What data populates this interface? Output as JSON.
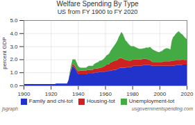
{
  "chart_data": {
    "type": "area",
    "stacked": true,
    "title": "Welfare Spending By Type",
    "subtitle": "US from FY 1900 to FY 2020",
    "ylabel": "percent GDP",
    "xlim": [
      1900,
      2020
    ],
    "ylim": [
      0,
      5
    ],
    "xticks": [
      1900,
      1920,
      1940,
      1960,
      1980,
      2000,
      2020
    ],
    "yticks": [
      0,
      1,
      2,
      3,
      4,
      5
    ],
    "grid": true,
    "legend": "bottom",
    "annotations": [
      "jsgraph",
      "usgovernmentspending.com"
    ],
    "x": [
      1900,
      1901,
      1902,
      1903,
      1904,
      1905,
      1906,
      1907,
      1908,
      1909,
      1910,
      1911,
      1912,
      1913,
      1914,
      1915,
      1916,
      1917,
      1918,
      1919,
      1920,
      1921,
      1922,
      1923,
      1924,
      1925,
      1926,
      1927,
      1928,
      1929,
      1930,
      1931,
      1932,
      1933,
      1934,
      1935,
      1936,
      1937,
      1938,
      1939,
      1940,
      1941,
      1942,
      1943,
      1944,
      1945,
      1946,
      1947,
      1948,
      1949,
      1950,
      1951,
      1952,
      1953,
      1954,
      1955,
      1956,
      1957,
      1958,
      1959,
      1960,
      1961,
      1962,
      1963,
      1964,
      1965,
      1966,
      1967,
      1968,
      1969,
      1970,
      1971,
      1972,
      1973,
      1974,
      1975,
      1976,
      1977,
      1978,
      1979,
      1980,
      1981,
      1982,
      1983,
      1984,
      1985,
      1986,
      1987,
      1988,
      1989,
      1990,
      1991,
      1992,
      1993,
      1994,
      1995,
      1996,
      1997,
      1998,
      1999,
      2000,
      2001,
      2002,
      2003,
      2004,
      2005,
      2006,
      2007,
      2008,
      2009,
      2010,
      2011,
      2012,
      2013,
      2014,
      2015,
      2016,
      2017,
      2018,
      2019,
      2020
    ],
    "series": [
      {
        "name": "Family and chi-tot",
        "color": "#2233cc",
        "values": [
          0.1,
          0.1,
          0.1,
          0.1,
          0.1,
          0.1,
          0.1,
          0.1,
          0.1,
          0.1,
          0.1,
          0.1,
          0.1,
          0.1,
          0.1,
          0.1,
          0.1,
          0.1,
          0.1,
          0.1,
          0.1,
          0.1,
          0.1,
          0.1,
          0.15,
          0.15,
          0.15,
          0.15,
          0.15,
          0.15,
          0.15,
          0.15,
          0.15,
          0.4,
          0.85,
          1.2,
          1.5,
          1.4,
          1.3,
          1.1,
          0.9,
          0.85,
          0.85,
          0.85,
          0.85,
          0.85,
          0.85,
          0.9,
          0.9,
          0.9,
          0.9,
          0.9,
          1.0,
          1.0,
          1.0,
          1.0,
          1.05,
          1.05,
          1.05,
          1.05,
          1.05,
          1.1,
          1.1,
          1.1,
          1.15,
          1.15,
          1.2,
          1.2,
          1.2,
          1.25,
          1.3,
          1.35,
          1.35,
          1.35,
          1.35,
          1.35,
          1.4,
          1.4,
          1.4,
          1.4,
          1.45,
          1.5,
          1.5,
          1.5,
          1.5,
          1.5,
          1.5,
          1.5,
          1.55,
          1.55,
          1.55,
          1.55,
          1.55,
          1.55,
          1.5,
          1.5,
          1.5,
          1.5,
          1.5,
          1.5,
          1.5,
          1.5,
          1.5,
          1.5,
          1.5,
          1.5,
          1.5,
          1.5,
          1.5,
          1.5,
          1.5,
          1.5,
          1.55,
          1.55,
          1.55,
          1.55,
          1.55,
          1.6,
          1.6,
          1.6,
          1.6
        ]
      },
      {
        "name": "Housing-tot",
        "color": "#cc2222",
        "values": [
          0.0,
          0.0,
          0.0,
          0.0,
          0.0,
          0.0,
          0.0,
          0.0,
          0.0,
          0.0,
          0.0,
          0.0,
          0.0,
          0.0,
          0.0,
          0.0,
          0.0,
          0.0,
          0.0,
          0.0,
          0.0,
          0.0,
          0.0,
          0.0,
          0.0,
          0.0,
          0.0,
          0.0,
          0.0,
          0.0,
          0.0,
          0.0,
          0.0,
          0.0,
          0.05,
          0.1,
          0.15,
          0.15,
          0.15,
          0.15,
          0.2,
          0.25,
          0.3,
          0.3,
          0.3,
          0.3,
          0.3,
          0.3,
          0.3,
          0.3,
          0.3,
          0.3,
          0.3,
          0.3,
          0.3,
          0.3,
          0.3,
          0.3,
          0.35,
          0.4,
          0.45,
          0.5,
          0.5,
          0.55,
          0.6,
          0.65,
          0.65,
          0.7,
          0.7,
          0.7,
          0.75,
          0.75,
          0.75,
          0.7,
          0.65,
          0.6,
          0.55,
          0.5,
          0.5,
          0.5,
          0.5,
          0.5,
          0.5,
          0.5,
          0.5,
          0.5,
          0.5,
          0.5,
          0.5,
          0.5,
          0.5,
          0.45,
          0.4,
          0.4,
          0.35,
          0.3,
          0.3,
          0.3,
          0.3,
          0.3,
          0.3,
          0.3,
          0.3,
          0.35,
          0.35,
          0.35,
          0.35,
          0.35,
          0.35,
          0.4,
          0.4,
          0.4,
          0.4,
          0.4,
          0.4,
          0.4,
          0.4,
          0.4,
          0.35,
          0.35,
          0.35
        ]
      },
      {
        "name": "Unemployment-tot",
        "color": "#44aa44",
        "values": [
          0.0,
          0.0,
          0.0,
          0.0,
          0.0,
          0.0,
          0.0,
          0.0,
          0.0,
          0.0,
          0.0,
          0.0,
          0.0,
          0.0,
          0.0,
          0.0,
          0.0,
          0.0,
          0.0,
          0.0,
          0.0,
          0.0,
          0.0,
          0.0,
          0.0,
          0.0,
          0.0,
          0.0,
          0.0,
          0.0,
          0.0,
          0.0,
          0.0,
          0.0,
          0.15,
          0.25,
          0.35,
          0.45,
          0.55,
          0.5,
          0.4,
          0.3,
          0.2,
          0.2,
          0.2,
          0.2,
          0.2,
          0.25,
          0.3,
          0.3,
          0.3,
          0.3,
          0.35,
          0.4,
          0.45,
          0.5,
          0.55,
          0.55,
          0.55,
          0.6,
          0.65,
          0.7,
          0.75,
          0.8,
          0.9,
          1.0,
          1.1,
          1.2,
          1.35,
          1.5,
          1.65,
          1.8,
          2.0,
          1.9,
          1.7,
          1.5,
          1.4,
          1.3,
          1.2,
          1.1,
          1.05,
          1.0,
          0.95,
          0.9,
          0.85,
          0.8,
          0.8,
          0.8,
          0.8,
          0.8,
          0.85,
          0.9,
          0.95,
          1.0,
          1.0,
          0.95,
          0.9,
          0.85,
          0.8,
          0.75,
          0.75,
          0.8,
          0.85,
          0.9,
          0.95,
          1.0,
          1.0,
          0.95,
          0.9,
          1.5,
          1.8,
          1.9,
          2.0,
          2.1,
          2.2,
          2.1,
          2.0,
          1.9,
          1.8,
          1.7,
          1.6
        ]
      }
    ]
  }
}
